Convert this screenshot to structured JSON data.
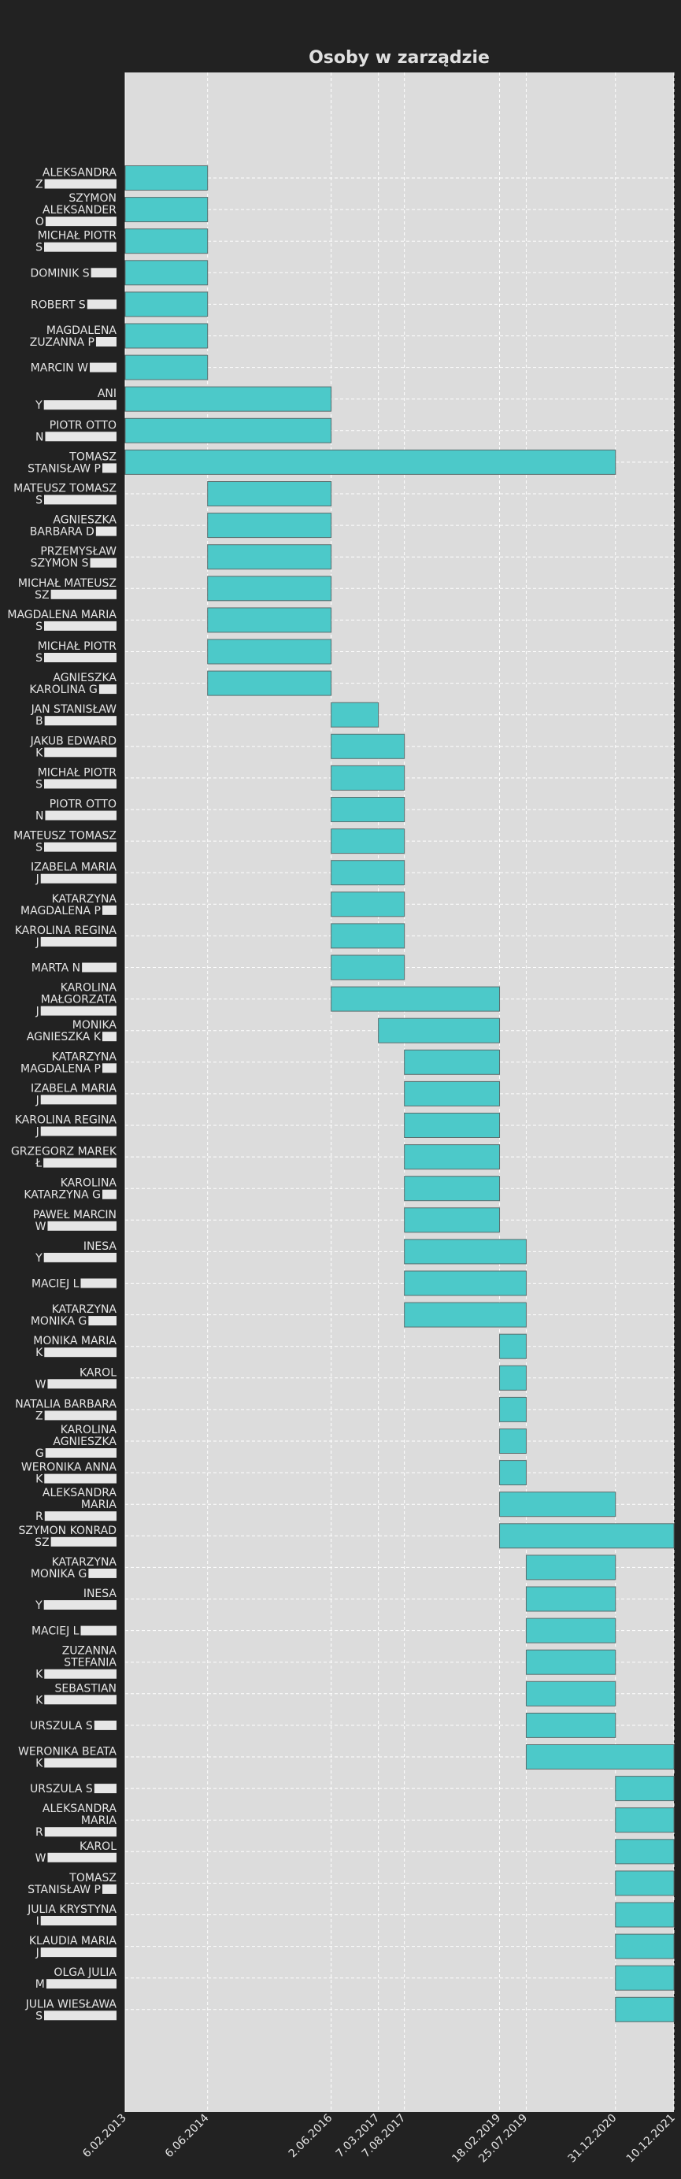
{
  "chart_data": {
    "type": "gantt",
    "title": "Osoby w zarządzie",
    "xlabel": "",
    "ylabel": "",
    "grid": true,
    "xlim": [
      "2013-02-06",
      "2021-12-10"
    ],
    "x_ticks": [
      "6.02.2013",
      "6.06.2014",
      "2.06.2016",
      "7.03.2017",
      "7.08.2017",
      "18.02.2019",
      "25.07.2019",
      "31.12.2020",
      "10.12.2021"
    ],
    "tasks": [
      {
        "label": [
          "ALEKSANDRA",
          "Z"
        ],
        "start": "2013-02-06",
        "end": "2014-06-06"
      },
      {
        "label": [
          "SZYMON",
          "ALEKSANDER",
          "O"
        ],
        "start": "2013-02-06",
        "end": "2014-06-06"
      },
      {
        "label": [
          "MICHAŁ PIOTR",
          "S"
        ],
        "start": "2013-02-06",
        "end": "2014-06-06"
      },
      {
        "label": [
          "DOMINIK S"
        ],
        "start": "2013-02-06",
        "end": "2014-06-06"
      },
      {
        "label": [
          "ROBERT S"
        ],
        "start": "2013-02-06",
        "end": "2014-06-06"
      },
      {
        "label": [
          "MAGDALENA",
          "ZUZANNA P"
        ],
        "start": "2013-02-06",
        "end": "2014-06-06"
      },
      {
        "label": [
          "MARCIN W"
        ],
        "start": "2013-02-06",
        "end": "2014-06-06"
      },
      {
        "label": [
          "ANI",
          "Y"
        ],
        "start": "2013-02-06",
        "end": "2016-06-02"
      },
      {
        "label": [
          "PIOTR OTTO",
          "N"
        ],
        "start": "2013-02-06",
        "end": "2016-06-02"
      },
      {
        "label": [
          "TOMASZ",
          "STANISŁAW P"
        ],
        "start": "2013-02-06",
        "end": "2020-12-31"
      },
      {
        "label": [
          "MATEUSZ TOMASZ",
          "S"
        ],
        "start": "2014-06-06",
        "end": "2016-06-02"
      },
      {
        "label": [
          "AGNIESZKA",
          "BARBARA D"
        ],
        "start": "2014-06-06",
        "end": "2016-06-02"
      },
      {
        "label": [
          "PRZEMYSŁAW",
          "SZYMON S"
        ],
        "start": "2014-06-06",
        "end": "2016-06-02"
      },
      {
        "label": [
          "MICHAŁ MATEUSZ",
          "SZ"
        ],
        "start": "2014-06-06",
        "end": "2016-06-02"
      },
      {
        "label": [
          "MAGDALENA MARIA",
          "S"
        ],
        "start": "2014-06-06",
        "end": "2016-06-02"
      },
      {
        "label": [
          "MICHAŁ PIOTR",
          "S"
        ],
        "start": "2014-06-06",
        "end": "2016-06-02"
      },
      {
        "label": [
          "AGNIESZKA",
          "KAROLINA G"
        ],
        "start": "2014-06-06",
        "end": "2016-06-02"
      },
      {
        "label": [
          "JAN STANISŁAW",
          "B"
        ],
        "start": "2016-06-02",
        "end": "2017-03-07"
      },
      {
        "label": [
          "JAKUB EDWARD",
          "K"
        ],
        "start": "2016-06-02",
        "end": "2017-08-07"
      },
      {
        "label": [
          "MICHAŁ PIOTR",
          "S"
        ],
        "start": "2016-06-02",
        "end": "2017-08-07"
      },
      {
        "label": [
          "PIOTR OTTO",
          "N"
        ],
        "start": "2016-06-02",
        "end": "2017-08-07"
      },
      {
        "label": [
          "MATEUSZ TOMASZ",
          "S"
        ],
        "start": "2016-06-02",
        "end": "2017-08-07"
      },
      {
        "label": [
          "IZABELA MARIA",
          "J"
        ],
        "start": "2016-06-02",
        "end": "2017-08-07"
      },
      {
        "label": [
          "KATARZYNA",
          "MAGDALENA P"
        ],
        "start": "2016-06-02",
        "end": "2017-08-07"
      },
      {
        "label": [
          "KAROLINA REGINA",
          "J"
        ],
        "start": "2016-06-02",
        "end": "2017-08-07"
      },
      {
        "label": [
          "MARTA N"
        ],
        "start": "2016-06-02",
        "end": "2017-08-07"
      },
      {
        "label": [
          "KAROLINA",
          "MAŁGORZATA",
          "J"
        ],
        "start": "2016-06-02",
        "end": "2019-02-18"
      },
      {
        "label": [
          "MONIKA",
          "AGNIESZKA K"
        ],
        "start": "2017-03-07",
        "end": "2019-02-18"
      },
      {
        "label": [
          "KATARZYNA",
          "MAGDALENA P"
        ],
        "start": "2017-08-07",
        "end": "2019-02-18"
      },
      {
        "label": [
          "IZABELA MARIA",
          "J"
        ],
        "start": "2017-08-07",
        "end": "2019-02-18"
      },
      {
        "label": [
          "KAROLINA REGINA",
          "J"
        ],
        "start": "2017-08-07",
        "end": "2019-02-18"
      },
      {
        "label": [
          "GRZEGORZ MAREK",
          "Ł"
        ],
        "start": "2017-08-07",
        "end": "2019-02-18"
      },
      {
        "label": [
          "KAROLINA",
          "KATARZYNA G"
        ],
        "start": "2017-08-07",
        "end": "2019-02-18"
      },
      {
        "label": [
          "PAWEŁ MARCIN",
          "W"
        ],
        "start": "2017-08-07",
        "end": "2019-02-18"
      },
      {
        "label": [
          "INESA",
          "Y"
        ],
        "start": "2017-08-07",
        "end": "2019-07-25"
      },
      {
        "label": [
          "MACIEJ L"
        ],
        "start": "2017-08-07",
        "end": "2019-07-25"
      },
      {
        "label": [
          "KATARZYNA",
          "MONIKA G"
        ],
        "start": "2017-08-07",
        "end": "2019-07-25"
      },
      {
        "label": [
          "MONIKA MARIA",
          "K"
        ],
        "start": "2019-02-18",
        "end": "2019-07-25"
      },
      {
        "label": [
          "KAROL",
          "W"
        ],
        "start": "2019-02-18",
        "end": "2019-07-25"
      },
      {
        "label": [
          "NATALIA BARBARA",
          "Z"
        ],
        "start": "2019-02-18",
        "end": "2019-07-25"
      },
      {
        "label": [
          "KAROLINA",
          "AGNIESZKA",
          "G"
        ],
        "start": "2019-02-18",
        "end": "2019-07-25"
      },
      {
        "label": [
          "WERONIKA ANNA",
          "K"
        ],
        "start": "2019-02-18",
        "end": "2019-07-25"
      },
      {
        "label": [
          "ALEKSANDRA",
          "MARIA",
          "R"
        ],
        "start": "2019-02-18",
        "end": "2020-12-31"
      },
      {
        "label": [
          "SZYMON KONRAD",
          "SZ"
        ],
        "start": "2019-02-18",
        "end": "2021-12-10"
      },
      {
        "label": [
          "KATARZYNA",
          "MONIKA G"
        ],
        "start": "2019-07-25",
        "end": "2020-12-31"
      },
      {
        "label": [
          "INESA",
          "Y"
        ],
        "start": "2019-07-25",
        "end": "2020-12-31"
      },
      {
        "label": [
          "MACIEJ L"
        ],
        "start": "2019-07-25",
        "end": "2020-12-31"
      },
      {
        "label": [
          "ZUZANNA",
          "STEFANIA",
          "K"
        ],
        "start": "2019-07-25",
        "end": "2020-12-31"
      },
      {
        "label": [
          "SEBASTIAN",
          "K"
        ],
        "start": "2019-07-25",
        "end": "2020-12-31"
      },
      {
        "label": [
          "URSZULA S"
        ],
        "start": "2019-07-25",
        "end": "2020-12-31"
      },
      {
        "label": [
          "WERONIKA BEATA",
          "K"
        ],
        "start": "2019-07-25",
        "end": "2021-12-10"
      },
      {
        "label": [
          "URSZULA S"
        ],
        "start": "2020-12-31",
        "end": "2021-12-10"
      },
      {
        "label": [
          "ALEKSANDRA",
          "MARIA",
          "R"
        ],
        "start": "2020-12-31",
        "end": "2021-12-10"
      },
      {
        "label": [
          "KAROL",
          "W"
        ],
        "start": "2020-12-31",
        "end": "2021-12-10"
      },
      {
        "label": [
          "TOMASZ",
          "STANISŁAW P"
        ],
        "start": "2020-12-31",
        "end": "2021-12-10"
      },
      {
        "label": [
          "JULIA KRYSTYNA",
          "I"
        ],
        "start": "2020-12-31",
        "end": "2021-12-10"
      },
      {
        "label": [
          "KLAUDIA MARIA",
          "J"
        ],
        "start": "2020-12-31",
        "end": "2021-12-10"
      },
      {
        "label": [
          "OLGA JULIA",
          "M"
        ],
        "start": "2020-12-31",
        "end": "2021-12-10"
      },
      {
        "label": [
          "JULIA WIESŁAWA",
          "S"
        ],
        "start": "2020-12-31",
        "end": "2021-12-10"
      }
    ],
    "colors": {
      "bar": "#4cc9c9",
      "bar_edge": "#5a6e6e",
      "plot_bg": "#dcdcdc",
      "page_bg": "#222222",
      "grid": "#ffffff",
      "text": "#e6e6e6",
      "redaction": "#e6e6e6"
    }
  }
}
